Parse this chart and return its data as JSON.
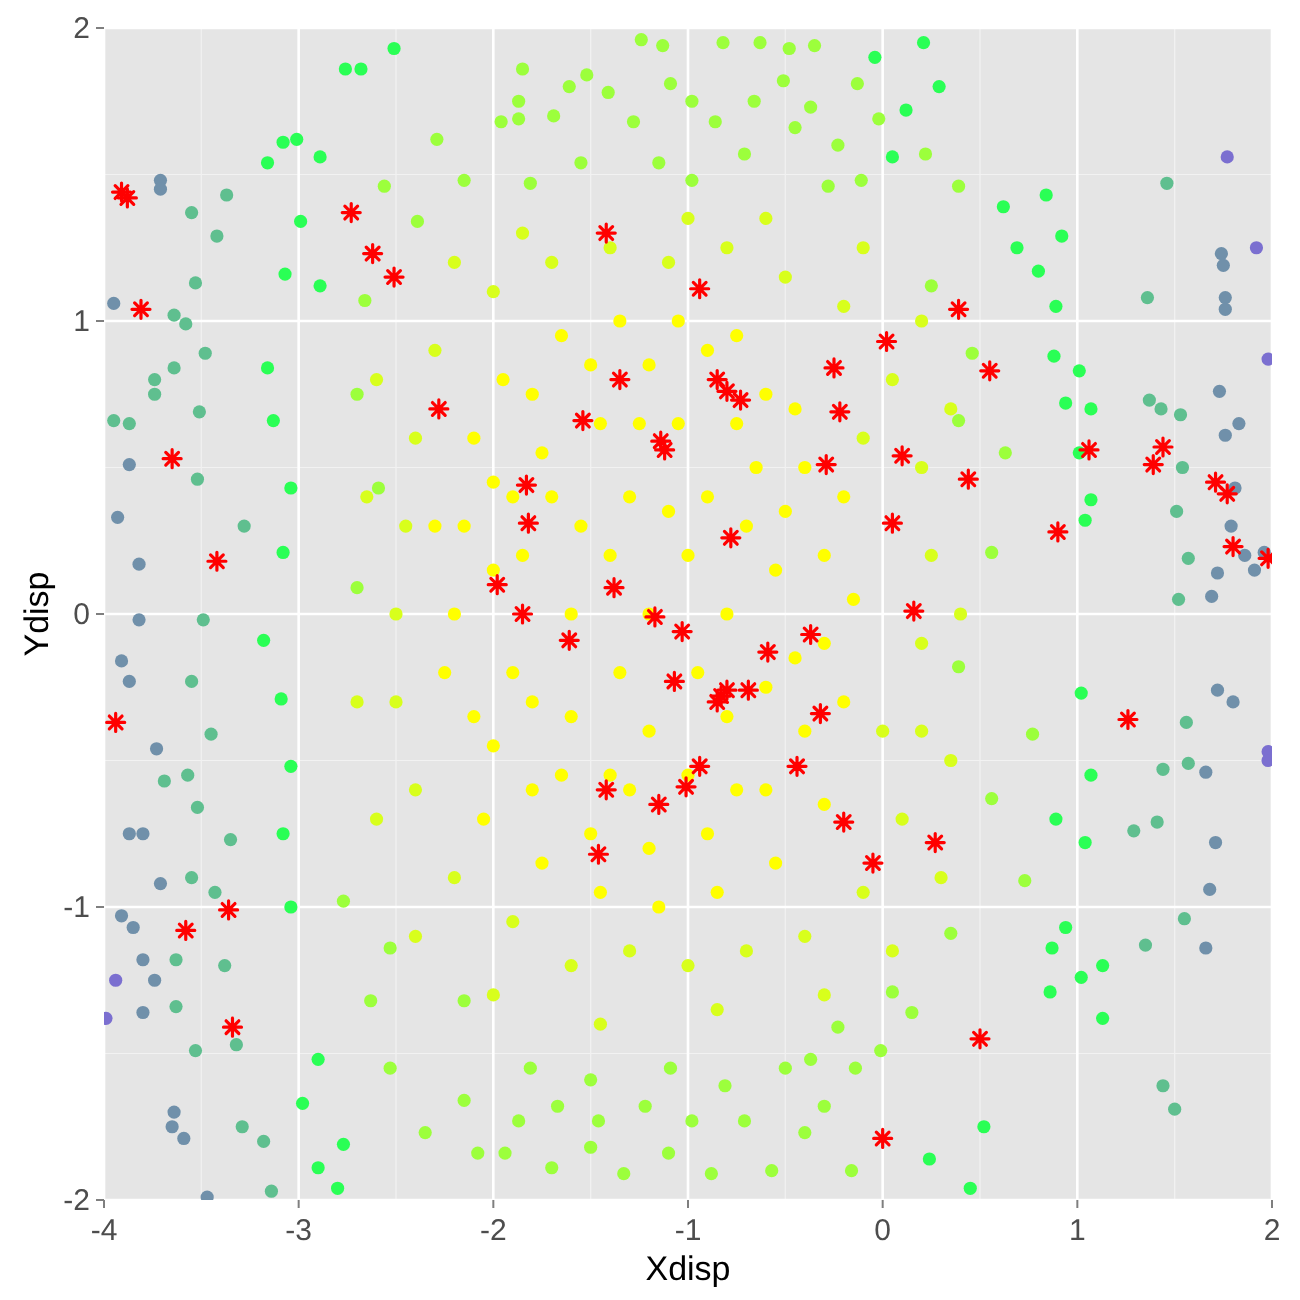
{
  "chart_data": {
    "type": "scatter",
    "xlabel": "Xdisp",
    "ylabel": "Ydisp",
    "xlim": [
      -4,
      2
    ],
    "ylim": [
      -2,
      2
    ],
    "xticks": [
      -4,
      {
        "value": -3.5,
        "label": null
      },
      -3,
      {
        "value": -2.5,
        "label": null
      },
      -2,
      {
        "value": -1.5,
        "label": null
      },
      -1,
      {
        "value": -0.5,
        "label": null
      },
      0,
      {
        "value": 0.5,
        "label": null
      },
      1,
      {
        "value": 1.5,
        "label": null
      },
      2
    ],
    "yticks": [
      -2,
      {
        "value": -1.5,
        "label": null
      },
      -1,
      {
        "value": -0.5,
        "label": null
      },
      0,
      {
        "value": 0.5,
        "label": null
      },
      1,
      {
        "value": 1.5,
        "label": null
      },
      2
    ],
    "grid": true,
    "marker": "circle",
    "series": [
      {
        "color": "#7b6fd0",
        "x": [
          1.77,
          1.92,
          1.98,
          1.98,
          1.98,
          -3.94,
          -3.99
        ],
        "values": [
          1.56,
          1.25,
          0.87,
          -0.47,
          -0.5,
          -1.25,
          -1.38
        ]
      },
      {
        "color": "#7090aa",
        "x": [
          1.74,
          1.75,
          1.76,
          1.76,
          1.73,
          1.83,
          1.76,
          1.81,
          1.79,
          1.86,
          1.96,
          1.91,
          1.72,
          1.69,
          1.8,
          1.72,
          1.66,
          1.71,
          1.68,
          1.66,
          -3.71,
          -3.71,
          -3.95,
          -3.91,
          -3.82,
          -3.87,
          -3.8,
          -3.91,
          -3.85,
          -3.8,
          -3.74,
          -3.8,
          -3.64,
          -3.65,
          -3.59,
          -3.47,
          -3.71,
          -3.87,
          -3.73,
          -3.87,
          -3.93,
          -3.82
        ],
        "values": [
          1.23,
          1.19,
          1.08,
          1.04,
          0.76,
          0.65,
          0.61,
          0.43,
          0.3,
          0.2,
          0.21,
          0.15,
          0.14,
          0.06,
          -0.3,
          -0.26,
          -0.54,
          -0.78,
          -0.94,
          -1.14,
          1.48,
          1.45,
          1.06,
          -0.16,
          -0.02,
          -0.75,
          -0.75,
          -1.03,
          -1.07,
          -1.18,
          -1.25,
          -1.36,
          -1.7,
          -1.75,
          -1.79,
          -1.99,
          -0.92,
          -0.23,
          -0.46,
          0.51,
          0.33,
          0.17
        ]
      },
      {
        "color": "#5fbf8f",
        "x": [
          1.46,
          1.36,
          1.53,
          1.54,
          1.51,
          1.57,
          1.52,
          1.56,
          1.57,
          1.55,
          1.35,
          1.44,
          1.5,
          1.29,
          1.41,
          1.44,
          1.43,
          1.37,
          -3.37,
          -3.55,
          -3.53,
          -3.64,
          -3.58,
          -3.95,
          -3.87,
          -3.74,
          -3.74,
          -3.64,
          -3.42,
          -3.51,
          -3.48,
          -3.63,
          -3.63,
          -3.53,
          -3.32,
          -3.29,
          -3.18,
          -3.14,
          -3.57,
          -3.55,
          -3.43,
          -3.38,
          -3.52,
          -3.35,
          -3.45,
          -3.55,
          -3.69,
          -3.49,
          -3.52,
          -3.28
        ],
        "values": [
          1.47,
          1.08,
          0.68,
          0.5,
          0.35,
          0.19,
          0.05,
          -0.37,
          -0.51,
          -1.04,
          -1.13,
          -1.61,
          -1.69,
          -0.74,
          -0.71,
          -0.53,
          0.7,
          0.73,
          1.43,
          1.37,
          1.13,
          1.02,
          0.99,
          0.66,
          0.65,
          0.8,
          0.75,
          0.84,
          1.29,
          0.69,
          0.89,
          -1.34,
          -1.18,
          -1.49,
          -1.47,
          -1.75,
          -1.8,
          -1.97,
          -0.55,
          -0.9,
          -0.95,
          -1.2,
          -0.66,
          -0.77,
          -0.41,
          -0.23,
          -0.57,
          -0.02,
          0.46,
          0.3
        ]
      },
      {
        "color": "#2aff55",
        "x": [
          -3.08,
          -3.16,
          -3.01,
          -2.76,
          -2.68,
          -2.51,
          -2.9,
          -2.8,
          -2.77,
          -2.9,
          -2.98,
          -3.04,
          -3.08,
          -3.04,
          -3.09,
          -3.18,
          -3.16,
          -3.13,
          -3.04,
          -3.08,
          -2.89,
          -2.99,
          -3.07,
          -2.89,
          1.13,
          1.02,
          0.86,
          0.45,
          0.24,
          0.52,
          1.13,
          1.02,
          0.89,
          0.87,
          0.94,
          1.04,
          1.07,
          0.62,
          0.8,
          0.89,
          0.88,
          1.01,
          0.94,
          1.07,
          1.01,
          1.07,
          1.04,
          0.69,
          0.21,
          0.29,
          0.12,
          0.84,
          0.92,
          -0.04,
          0.05
        ],
        "values": [
          1.61,
          1.54,
          1.62,
          1.86,
          1.86,
          1.93,
          -1.89,
          -1.96,
          -1.81,
          -1.52,
          -1.67,
          -1.0,
          -0.75,
          -0.52,
          -0.29,
          -0.09,
          0.84,
          0.66,
          0.43,
          0.21,
          1.56,
          1.34,
          1.16,
          1.12,
          -1.38,
          -1.24,
          -1.29,
          -1.96,
          -1.86,
          -1.75,
          -1.2,
          -0.27,
          -0.7,
          -1.14,
          -1.07,
          -0.78,
          -0.55,
          1.39,
          1.17,
          1.05,
          0.88,
          0.83,
          0.72,
          0.7,
          0.55,
          0.39,
          0.32,
          1.25,
          1.95,
          1.8,
          1.72,
          1.43,
          1.29,
          1.9,
          1.56
        ]
      },
      {
        "color": "#9cff3c",
        "x": [
          -1.85,
          -1.52,
          -1.13,
          -0.82,
          -0.63,
          -0.35,
          -0.48,
          -1.24,
          -1.87,
          -1.61,
          -1.41,
          -1.09,
          -0.98,
          -0.66,
          -0.51,
          -0.23,
          -0.13,
          -0.02,
          -0.37,
          -1.87,
          -1.69,
          -1.28,
          -0.86,
          -0.45,
          -1.96,
          -1.55,
          -1.15,
          -0.71,
          -0.28,
          -0.11,
          -1.81,
          -0.98,
          -1.94,
          -1.7,
          -1.5,
          -1.33,
          -1.1,
          -0.88,
          -0.57,
          -0.4,
          -0.16,
          -0.01,
          -0.3,
          -0.5,
          -0.71,
          -0.98,
          -1.22,
          -1.46,
          -1.67,
          -1.87,
          -1.81,
          -1.5,
          -1.09,
          -0.81,
          -0.37,
          -0.14,
          0.05,
          -0.23,
          -2.53,
          -2.35,
          -2.63,
          -2.53,
          -2.77,
          -2.15,
          -2.15,
          -2.08,
          -2.56,
          -2.39,
          -2.66,
          -2.29,
          -2.15,
          -2.7,
          -2.59,
          -2.7,
          0.22,
          0.39,
          0.25,
          0.46,
          0.39,
          0.63,
          0.56,
          0.39,
          0.56,
          0.35,
          0.15,
          0.73,
          0.77
        ],
        "values": [
          1.86,
          1.84,
          1.94,
          1.95,
          1.95,
          1.94,
          1.93,
          1.96,
          1.75,
          1.8,
          1.78,
          1.81,
          1.75,
          1.75,
          1.82,
          1.6,
          1.81,
          1.69,
          1.73,
          1.69,
          1.7,
          1.68,
          1.68,
          1.66,
          1.68,
          1.54,
          1.54,
          1.57,
          1.46,
          1.48,
          1.47,
          1.48,
          -1.84,
          -1.89,
          -1.82,
          -1.91,
          -1.84,
          -1.91,
          -1.9,
          -1.77,
          -1.9,
          -1.49,
          -1.68,
          -1.55,
          -1.73,
          -1.73,
          -1.68,
          -1.73,
          -1.68,
          -1.73,
          -1.55,
          -1.59,
          -1.55,
          -1.61,
          -1.52,
          -1.55,
          -1.29,
          -1.41,
          -1.55,
          -1.77,
          -1.32,
          -1.14,
          -0.98,
          -1.32,
          -1.66,
          -1.84,
          1.46,
          1.34,
          1.07,
          1.62,
          1.48,
          0.75,
          0.43,
          0.09,
          1.57,
          1.46,
          1.12,
          0.89,
          0.66,
          0.55,
          0.21,
          -0.18,
          -0.63,
          -1.09,
          -1.36,
          -0.91,
          -0.41
        ]
      },
      {
        "color": "#d8ff1c",
        "x": [
          -2.3,
          -2.0,
          -1.7,
          -1.4,
          -1.1,
          -0.8,
          -0.5,
          -0.2,
          0.05,
          0.2,
          0.25,
          0.2,
          0.2,
          0.1,
          -0.1,
          -0.4,
          -0.7,
          -1.0,
          -1.3,
          -1.6,
          -1.9,
          -2.2,
          -2.4,
          -2.5,
          -2.5,
          -2.45,
          -2.4,
          -2.6,
          -2.2,
          -1.85,
          -1.0,
          -0.6,
          -0.1,
          0.2,
          0.35,
          0.4,
          0.35,
          0.3,
          0.05,
          -0.3,
          -0.85,
          -1.45,
          -2.0,
          -2.4,
          -2.6,
          -2.7,
          -2.65,
          -0.1,
          0.0
        ],
        "values": [
          0.9,
          1.1,
          1.2,
          1.25,
          1.2,
          1.25,
          1.15,
          1.05,
          0.8,
          0.5,
          0.2,
          -0.1,
          -0.4,
          -0.7,
          -0.95,
          -1.1,
          -1.15,
          -1.2,
          -1.15,
          -1.2,
          -1.05,
          -0.9,
          -0.6,
          -0.3,
          0.0,
          0.3,
          0.6,
          0.8,
          1.2,
          1.3,
          1.35,
          1.35,
          1.25,
          1.0,
          0.7,
          0.0,
          -0.5,
          -0.9,
          -1.15,
          -1.3,
          -1.35,
          -1.4,
          -1.3,
          -1.1,
          -0.7,
          -0.3,
          0.4,
          0.6,
          -0.4
        ]
      },
      {
        "color": "#ffff00",
        "x": [
          -2.1,
          -1.8,
          -1.5,
          -1.2,
          -0.9,
          -0.6,
          -0.4,
          -0.3,
          -0.3,
          -0.4,
          -0.6,
          -0.9,
          -1.2,
          -1.5,
          -1.8,
          -2.1,
          -2.2,
          -2.15,
          -1.7,
          -1.3,
          -0.9,
          -1.6,
          -1.2,
          -0.8,
          -1.6,
          -1.2,
          -0.8,
          -2.0,
          -1.9,
          -1.75,
          -1.45,
          -1.05,
          -0.65,
          -0.55,
          -0.6,
          -1.0,
          -1.4,
          -1.4,
          -1.0,
          -1.35,
          -0.95,
          -1.9,
          -2.3,
          -2.25,
          -2.0,
          -2.0,
          -1.95,
          -1.65,
          -1.35,
          -1.05,
          -0.75,
          -0.45,
          -0.2,
          -0.15,
          -0.2,
          -0.3,
          -0.55,
          -0.85,
          -1.15,
          -1.45,
          -1.75,
          -2.05,
          -1.55,
          -1.1,
          -0.7,
          -1.85,
          -1.3,
          -0.75,
          -1.65,
          -0.45,
          -0.75,
          -1.25,
          -1.8,
          -0.5
        ],
        "values": [
          0.6,
          0.75,
          0.85,
          0.85,
          0.9,
          0.75,
          0.5,
          0.2,
          -0.1,
          -0.4,
          -0.6,
          -0.75,
          -0.8,
          -0.75,
          -0.6,
          -0.35,
          0.0,
          0.3,
          0.4,
          0.4,
          0.4,
          0.0,
          0.0,
          0.0,
          -0.35,
          -0.4,
          -0.35,
          0.15,
          -0.2,
          0.55,
          0.65,
          0.65,
          0.5,
          0.15,
          -0.25,
          -0.55,
          -0.55,
          0.2,
          0.2,
          -0.2,
          -0.2,
          0.4,
          0.3,
          -0.2,
          0.45,
          -0.45,
          0.8,
          0.95,
          1.0,
          1.0,
          0.95,
          0.7,
          0.4,
          0.05,
          -0.3,
          -0.65,
          -0.85,
          -0.95,
          -1.0,
          -0.95,
          -0.85,
          -0.7,
          0.3,
          0.35,
          0.3,
          0.2,
          -0.6,
          -0.6,
          -0.55,
          -0.15,
          0.65,
          0.65,
          -0.3,
          0.35
        ]
      },
      {
        "color": "#ff0000",
        "marker": "cross",
        "x": [
          -3.91,
          -3.88,
          -3.81,
          -3.65,
          -3.42,
          -2.73,
          -2.62,
          -2.51,
          -2.28,
          -1.98,
          -1.42,
          -0.94,
          0.02,
          -0.25,
          -1.35,
          -0.85,
          -0.8,
          -0.73,
          -0.22,
          -1.54,
          -1.14,
          -1.12,
          -0.29,
          0.1,
          -1.83,
          -1.82,
          0.05,
          -0.78,
          -1.38,
          -1.85,
          -1.17,
          0.39,
          0.55,
          0.44,
          1.06,
          1.44,
          1.39,
          1.71,
          1.77,
          0.9,
          1.8,
          1.98,
          0.16,
          -3.94,
          -3.36,
          -3.58,
          -3.34,
          -1.61,
          -1.03,
          -0.37,
          -0.59,
          -1.07,
          -0.8,
          -0.83,
          -0.85,
          -0.69,
          -0.32,
          -0.94,
          -0.44,
          -1.01,
          -1.42,
          -1.15,
          -0.2,
          -1.46,
          -0.05,
          0.0,
          1.26,
          0.27,
          0.5
        ],
        "values": [
          1.44,
          1.42,
          1.04,
          0.53,
          0.18,
          1.37,
          1.23,
          1.15,
          0.7,
          0.1,
          1.3,
          1.11,
          0.93,
          0.84,
          0.8,
          0.8,
          0.76,
          0.73,
          0.69,
          0.66,
          0.59,
          0.56,
          0.51,
          0.54,
          0.44,
          0.31,
          0.31,
          0.26,
          0.09,
          0.0,
          -0.01,
          1.04,
          0.83,
          0.46,
          0.56,
          0.57,
          0.51,
          0.45,
          0.41,
          0.28,
          0.23,
          0.19,
          0.01,
          -0.37,
          -1.01,
          -1.08,
          -1.41,
          -0.09,
          -0.06,
          -0.07,
          -0.13,
          -0.23,
          -0.26,
          -0.28,
          -0.3,
          -0.26,
          -0.34,
          -0.52,
          -0.52,
          -0.59,
          -0.6,
          -0.65,
          -0.71,
          -0.82,
          -0.85,
          -1.79,
          -0.36,
          -0.78,
          -1.45
        ]
      }
    ]
  }
}
